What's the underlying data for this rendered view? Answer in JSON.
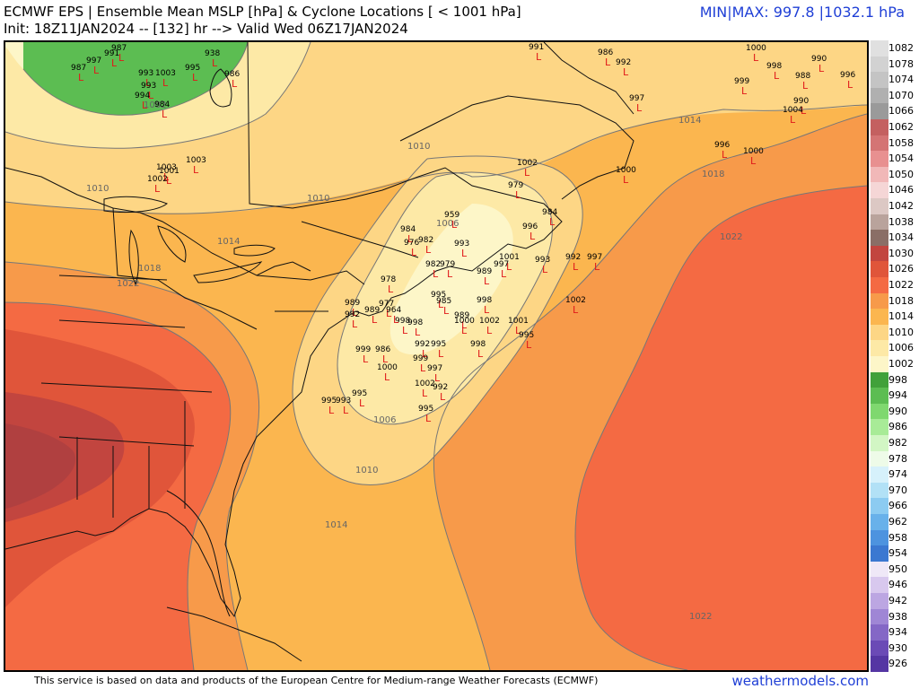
{
  "header": {
    "title": "ECMWF EPS | Ensemble Mean MSLP [hPa] & Cyclone Locations [ < 1001 hPa]",
    "subtitle": "Init: 18Z11JAN2024 -- [132] hr --> Valid Wed 06Z17JAN2024",
    "minmax": "MIN|MAX: 997.8 |1032.1 hPa"
  },
  "footer": {
    "credit": "This service is based on data and products of the European Centre for Medium-range Weather Forecasts (ECMWF)",
    "brand": "weathermodels.com"
  },
  "colorbar": {
    "levels": [
      {
        "label": "1082",
        "color": "#e0e0e0"
      },
      {
        "label": "1078",
        "color": "#d2d2d2"
      },
      {
        "label": "1074",
        "color": "#c4c4c4"
      },
      {
        "label": "1070",
        "color": "#b0b0b0"
      },
      {
        "label": "1066",
        "color": "#9a9a9a"
      },
      {
        "label": "1062",
        "color": "#c46060"
      },
      {
        "label": "1058",
        "color": "#d47474"
      },
      {
        "label": "1054",
        "color": "#e89090"
      },
      {
        "label": "1050",
        "color": "#f1b8b8"
      },
      {
        "label": "1046",
        "color": "#f5d6d6"
      },
      {
        "label": "1042",
        "color": "#dcc8c4"
      },
      {
        "label": "1038",
        "color": "#b9a39c"
      },
      {
        "label": "1034",
        "color": "#8a6e66"
      },
      {
        "label": "1030",
        "color": "#c2453f"
      },
      {
        "label": "1026",
        "color": "#e0553a"
      },
      {
        "label": "1022",
        "color": "#f46a43"
      },
      {
        "label": "1018",
        "color": "#f79a4a"
      },
      {
        "label": "1014",
        "color": "#fbb64f"
      },
      {
        "label": "1010",
        "color": "#fdd685"
      },
      {
        "label": "1006",
        "color": "#fde9a6"
      },
      {
        "label": "1002",
        "color": "#fdf6c8"
      },
      {
        "label": "998",
        "color": "#41a13a"
      },
      {
        "label": "994",
        "color": "#5cbd52"
      },
      {
        "label": "990",
        "color": "#7fd86f"
      },
      {
        "label": "986",
        "color": "#a8eb97"
      },
      {
        "label": "982",
        "color": "#d2f6c4"
      },
      {
        "label": "978",
        "color": "#eefbe8"
      },
      {
        "label": "974",
        "color": "#d6f1fb"
      },
      {
        "label": "970",
        "color": "#b2e1f6"
      },
      {
        "label": "966",
        "color": "#8ccbf1"
      },
      {
        "label": "962",
        "color": "#68b1ea"
      },
      {
        "label": "958",
        "color": "#4d93df"
      },
      {
        "label": "954",
        "color": "#3b78d1"
      },
      {
        "label": "950",
        "color": "#efe8f7"
      },
      {
        "label": "946",
        "color": "#d8c8ee"
      },
      {
        "label": "942",
        "color": "#bca6e2"
      },
      {
        "label": "938",
        "color": "#9f86d5"
      },
      {
        "label": "934",
        "color": "#8467c6"
      },
      {
        "label": "930",
        "color": "#6b4ab6"
      },
      {
        "label": "926",
        "color": "#5536a3"
      }
    ]
  },
  "isobar_labels": [
    {
      "text": "1002"
    },
    {
      "text": "1006"
    },
    {
      "text": "1006"
    },
    {
      "text": "1010"
    },
    {
      "text": "1010"
    },
    {
      "text": "1010"
    },
    {
      "text": "1010"
    },
    {
      "text": "1014"
    },
    {
      "text": "1014"
    },
    {
      "text": "1014"
    },
    {
      "text": "1018"
    },
    {
      "text": "1018"
    },
    {
      "text": "1022"
    },
    {
      "text": "1022"
    },
    {
      "text": "1022"
    }
  ],
  "cyclones": [
    {
      "v": "987"
    },
    {
      "v": "997"
    },
    {
      "v": "991"
    },
    {
      "v": "987"
    },
    {
      "v": "938"
    },
    {
      "v": "995"
    },
    {
      "v": "986"
    },
    {
      "v": "993"
    },
    {
      "v": "1003"
    },
    {
      "v": "993"
    },
    {
      "v": "994"
    },
    {
      "v": "984"
    },
    {
      "v": "1003"
    },
    {
      "v": "1003"
    },
    {
      "v": "1001"
    },
    {
      "v": "1002"
    },
    {
      "v": "991"
    },
    {
      "v": "986"
    },
    {
      "v": "992"
    },
    {
      "v": "997"
    },
    {
      "v": "1000"
    },
    {
      "v": "998"
    },
    {
      "v": "990"
    },
    {
      "v": "999"
    },
    {
      "v": "988"
    },
    {
      "v": "996"
    },
    {
      "v": "990"
    },
    {
      "v": "1004"
    },
    {
      "v": "996"
    },
    {
      "v": "1000"
    },
    {
      "v": "1002"
    },
    {
      "v": "1000"
    },
    {
      "v": "979"
    },
    {
      "v": "959"
    },
    {
      "v": "984"
    },
    {
      "v": "984"
    },
    {
      "v": "993"
    },
    {
      "v": "996"
    },
    {
      "v": "982"
    },
    {
      "v": "976"
    },
    {
      "v": "993"
    },
    {
      "v": "1001"
    },
    {
      "v": "992"
    },
    {
      "v": "997"
    },
    {
      "v": "982"
    },
    {
      "v": "979"
    },
    {
      "v": "989"
    },
    {
      "v": "997"
    },
    {
      "v": "978"
    },
    {
      "v": "995"
    },
    {
      "v": "985"
    },
    {
      "v": "998"
    },
    {
      "v": "1002"
    },
    {
      "v": "977"
    },
    {
      "v": "989"
    },
    {
      "v": "992"
    },
    {
      "v": "989"
    },
    {
      "v": "998"
    },
    {
      "v": "964"
    },
    {
      "v": "989"
    },
    {
      "v": "1000"
    },
    {
      "v": "1002"
    },
    {
      "v": "1001"
    },
    {
      "v": "998"
    },
    {
      "v": "992"
    },
    {
      "v": "995"
    },
    {
      "v": "995"
    },
    {
      "v": "998"
    },
    {
      "v": "999"
    },
    {
      "v": "986"
    },
    {
      "v": "999"
    },
    {
      "v": "1000"
    },
    {
      "v": "997"
    },
    {
      "v": "1002"
    },
    {
      "v": "992"
    },
    {
      "v": "995"
    },
    {
      "v": "993"
    },
    {
      "v": "995"
    },
    {
      "v": "995"
    }
  ]
}
